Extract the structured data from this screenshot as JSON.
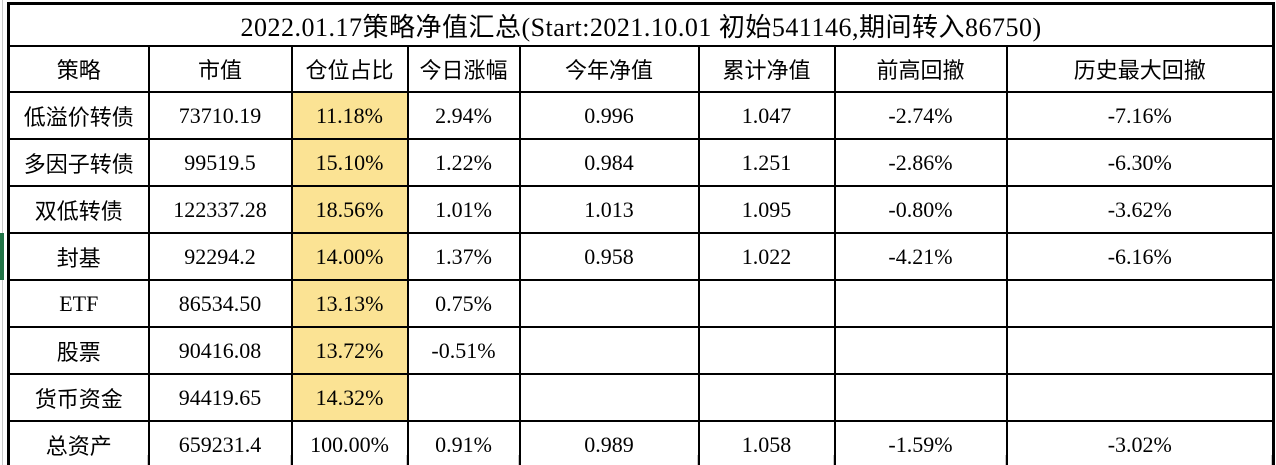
{
  "title": "2022.01.17策略净值汇总(Start:2021.10.01 初始541146,期间转入86750)",
  "table": {
    "columns": [
      "策略",
      "市值",
      "仓位占比",
      "今日涨幅",
      "今年净值",
      "累计净值",
      "前高回撤",
      "历史最大回撤"
    ],
    "highlight_column_index": 2,
    "rows": [
      {
        "cells": [
          "低溢价转债",
          "73710.19",
          "11.18%",
          "2.94%",
          "0.996",
          "1.047",
          "-2.74%",
          "-7.16%"
        ],
        "position_highlighted": true,
        "selected": false
      },
      {
        "cells": [
          "多因子转债",
          "99519.5",
          "15.10%",
          "1.22%",
          "0.984",
          "1.251",
          "-2.86%",
          "-6.30%"
        ],
        "position_highlighted": true,
        "selected": false
      },
      {
        "cells": [
          "双低转债",
          "122337.28",
          "18.56%",
          "1.01%",
          "1.013",
          "1.095",
          "-0.80%",
          "-3.62%"
        ],
        "position_highlighted": true,
        "selected": false
      },
      {
        "cells": [
          "封基",
          "92294.2",
          "14.00%",
          "1.37%",
          "0.958",
          "1.022",
          "-4.21%",
          "-6.16%"
        ],
        "position_highlighted": true,
        "selected": true
      },
      {
        "cells": [
          "ETF",
          "86534.50",
          "13.13%",
          "0.75%",
          "",
          "",
          "",
          ""
        ],
        "position_highlighted": true,
        "selected": false
      },
      {
        "cells": [
          "股票",
          "90416.08",
          "13.72%",
          "-0.51%",
          "",
          "",
          "",
          ""
        ],
        "position_highlighted": true,
        "selected": false
      },
      {
        "cells": [
          "货币资金",
          "94419.65",
          "14.32%",
          "",
          "",
          "",
          "",
          ""
        ],
        "position_highlighted": true,
        "selected": false
      },
      {
        "cells": [
          "总资产",
          "659231.4",
          "100.00%",
          "0.91%",
          "0.989",
          "1.058",
          "-1.59%",
          "-3.02%"
        ],
        "position_highlighted": false,
        "selected": false
      }
    ]
  },
  "colors": {
    "highlight_bg": "#fbe394",
    "highlight_text": "#9c6500",
    "table_border": "#000000",
    "selection_green": "#217346",
    "gridline_gray": "#c9c9c9"
  }
}
